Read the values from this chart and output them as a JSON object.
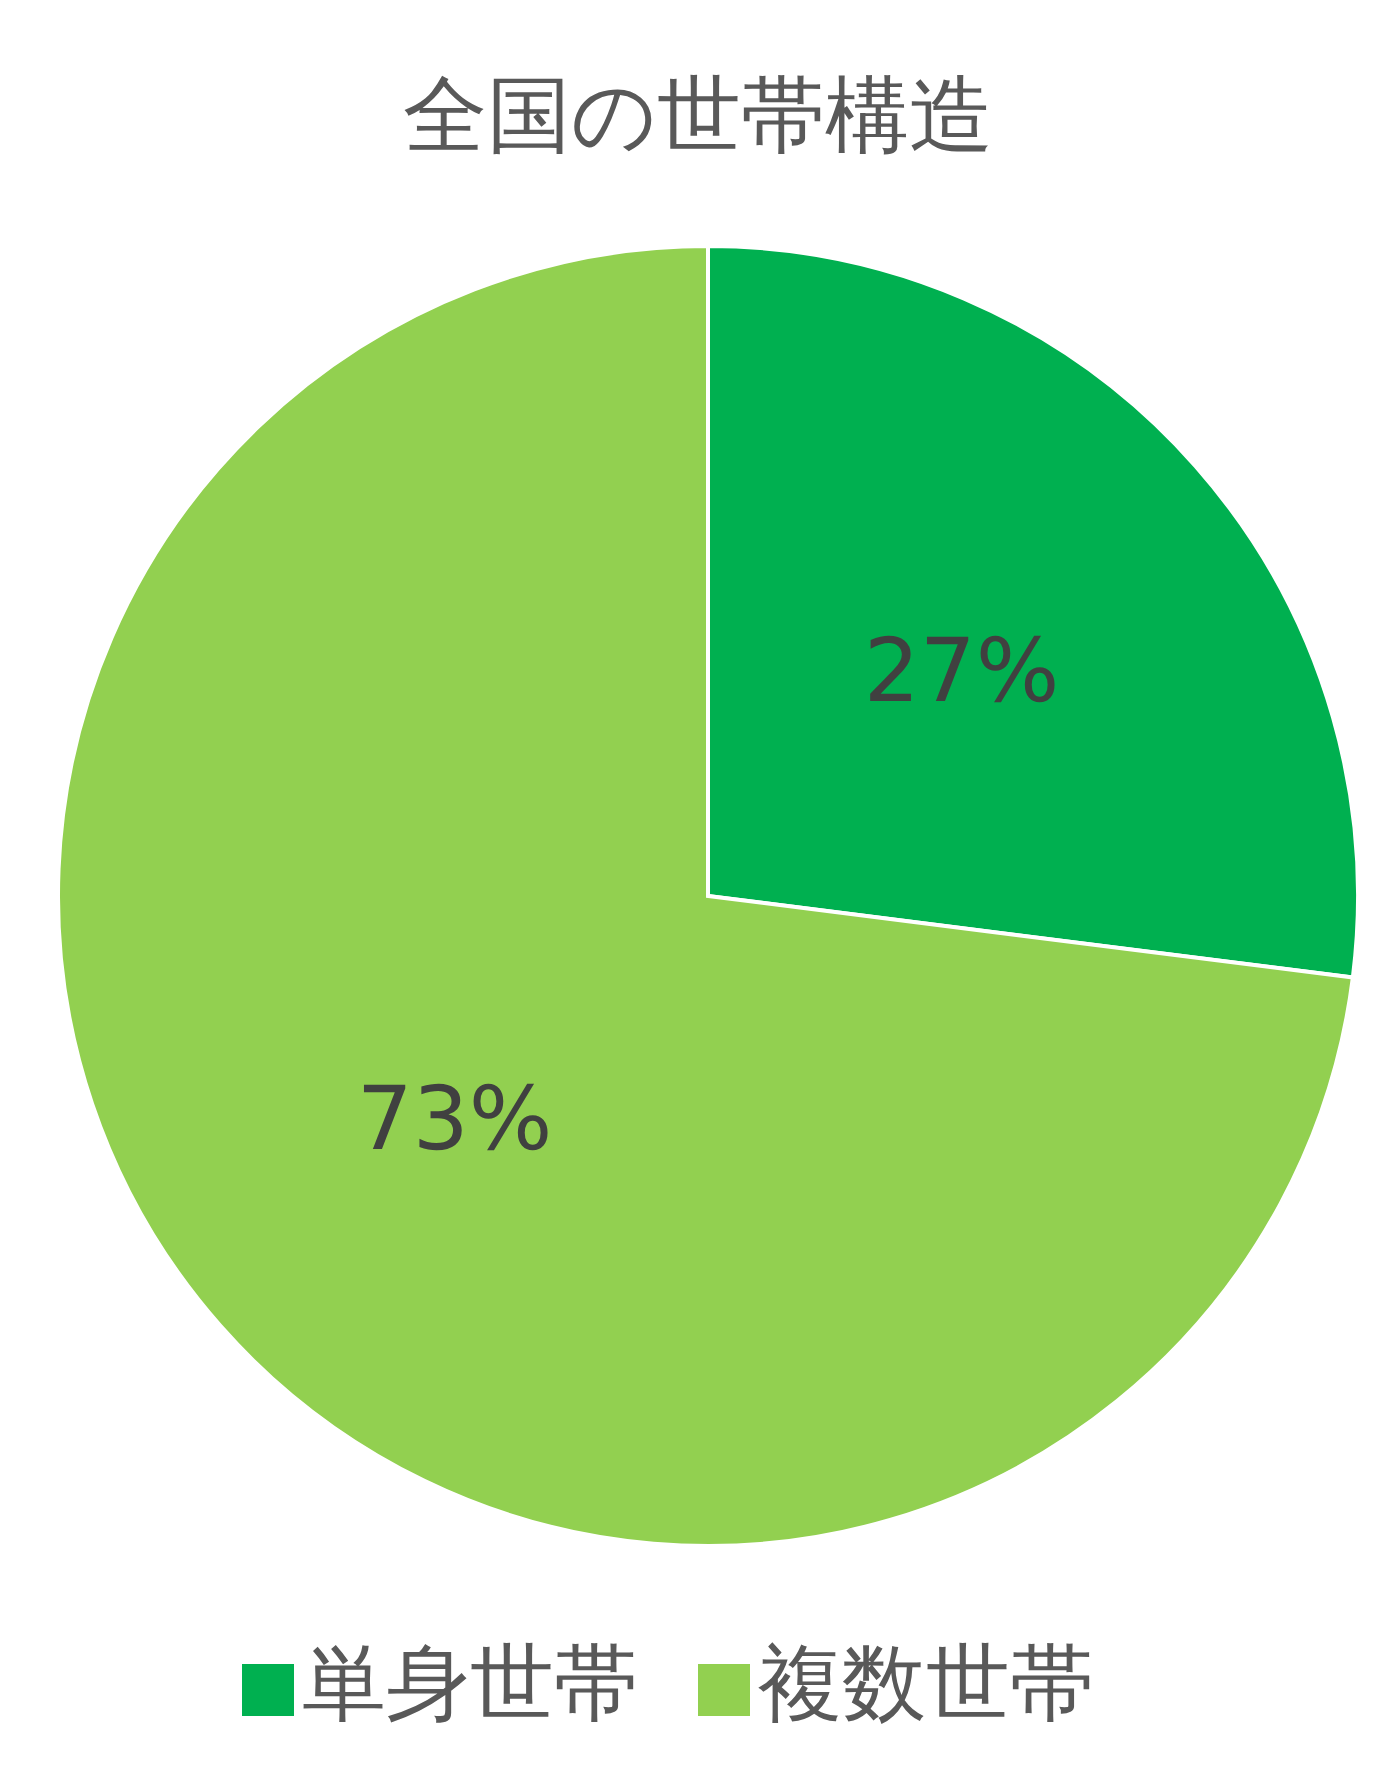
{
  "chart_data": {
    "type": "pie",
    "title": "全国の世帯構造",
    "categories": [
      "単身世帯",
      "複数世帯"
    ],
    "values": [
      27,
      73
    ],
    "colors": [
      "#00b050",
      "#92d050"
    ],
    "value_labels": [
      "27%",
      "73%"
    ],
    "legend": "bottom"
  }
}
